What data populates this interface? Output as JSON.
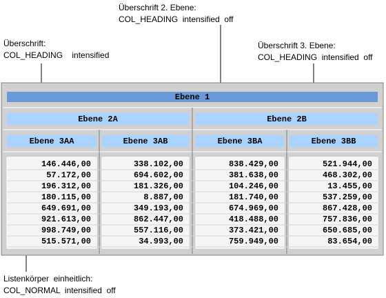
{
  "annotations": [
    {
      "lines": [
        "Überschrift 2. Ebene:",
        "COL_HEADING  intensified  off"
      ]
    },
    {
      "lines": [
        "Überschrift:",
        "COL_HEADING    intensified"
      ]
    },
    {
      "lines": [
        "Überschrift 3. Ebene:",
        "COL_HEADING  intensified  off"
      ]
    },
    {
      "lines": [
        "Listenkörper  einheitlich:",
        "COL_NORMAL  intensified  off"
      ]
    }
  ],
  "table": {
    "level1": "Ebene 1",
    "level2": [
      "Ebene 2A",
      "Ebene 2B"
    ],
    "level3": [
      "Ebene 3AA",
      "Ebene 3AB",
      "Ebene 3BA",
      "Ebene 3BB"
    ],
    "rows": [
      [
        "146.446,00",
        "338.102,00",
        "838.429,00",
        "521.944,00"
      ],
      [
        "57.172,00",
        "694.602,00",
        "381.638,00",
        "468.302,00"
      ],
      [
        "196.312,00",
        "181.326,00",
        "104.246,00",
        "13.455,00"
      ],
      [
        "180.115,00",
        "8.887,00",
        "181.740,00",
        "537.259,00"
      ],
      [
        "649.691,00",
        "349.193,00",
        "674.969,00",
        "867.428,00"
      ],
      [
        "921.613,00",
        "862.447,00",
        "418.488,00",
        "757.836,00"
      ],
      [
        "998.749,00",
        "557.116,00",
        "373.421,00",
        "650.685,00"
      ],
      [
        "515.571,00",
        "34.993,00",
        "759.949,00",
        "83.654,00"
      ]
    ]
  }
}
